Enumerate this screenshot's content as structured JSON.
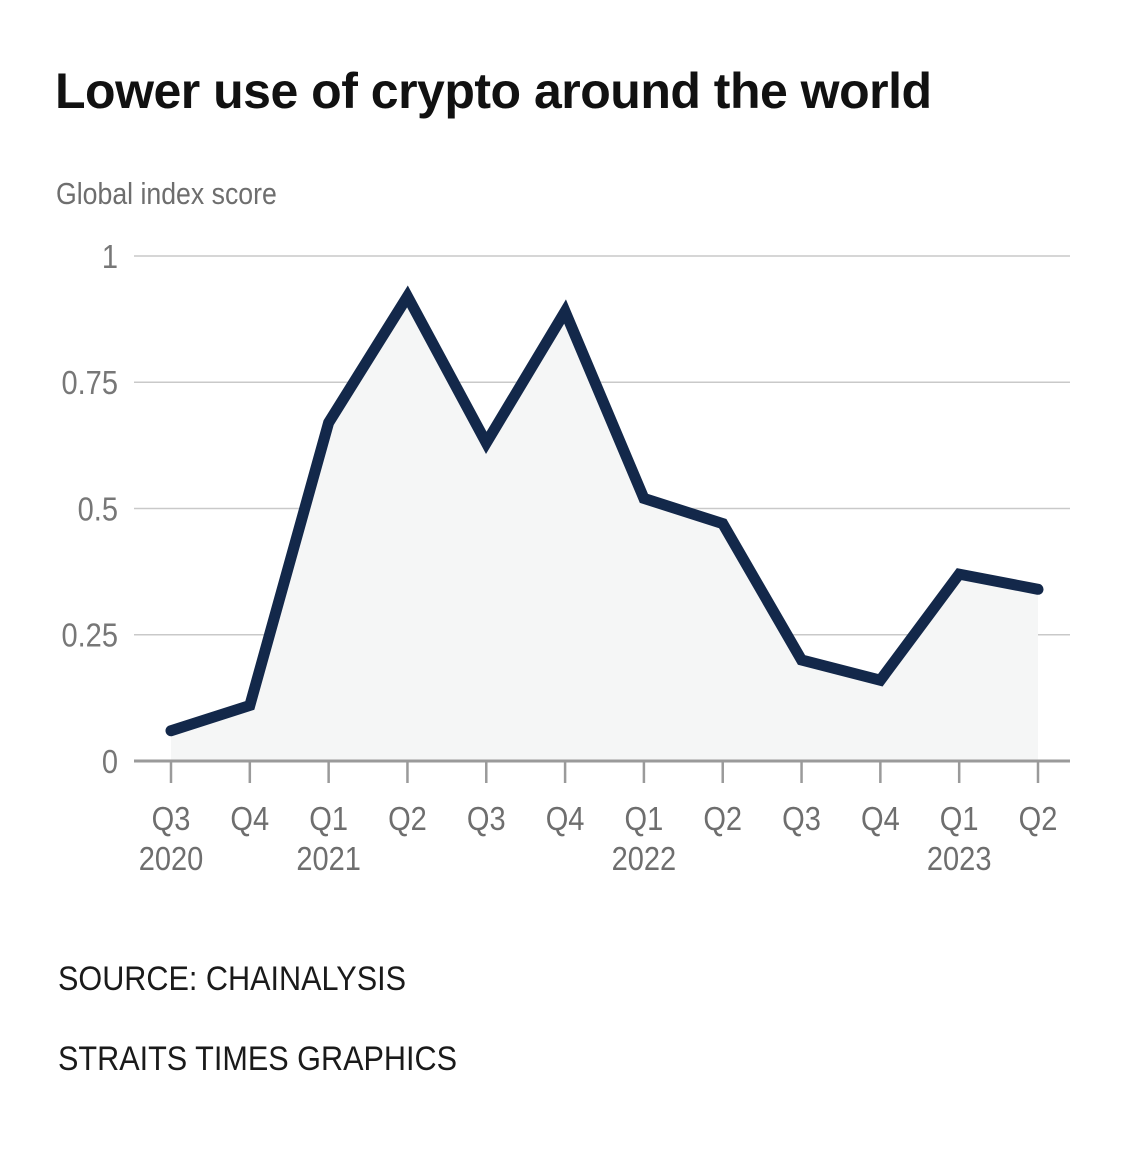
{
  "header": {
    "title": "Lower use of crypto around the world",
    "subtitle": "Global index score"
  },
  "footer": {
    "source": "SOURCE: CHAINALYSIS",
    "credit": "STRAITS TIMES GRAPHICS"
  },
  "chart_data": {
    "type": "line",
    "title": "Lower use of crypto around the world",
    "ylabel": "Global index score",
    "xlabel": "",
    "ylim": [
      0,
      1
    ],
    "yticks": [
      0,
      0.25,
      0.5,
      0.75,
      1
    ],
    "ytick_labels": [
      "0",
      "0.25",
      "0.5",
      "0.75",
      "1"
    ],
    "grid": true,
    "legend": "none",
    "categories": [
      {
        "quarter": "Q3",
        "year": "2020"
      },
      {
        "quarter": "Q4",
        "year": ""
      },
      {
        "quarter": "Q1",
        "year": "2021"
      },
      {
        "quarter": "Q2",
        "year": ""
      },
      {
        "quarter": "Q3",
        "year": ""
      },
      {
        "quarter": "Q4",
        "year": ""
      },
      {
        "quarter": "Q1",
        "year": "2022"
      },
      {
        "quarter": "Q2",
        "year": ""
      },
      {
        "quarter": "Q3",
        "year": ""
      },
      {
        "quarter": "Q4",
        "year": ""
      },
      {
        "quarter": "Q1",
        "year": "2023"
      },
      {
        "quarter": "Q2",
        "year": ""
      }
    ],
    "series": [
      {
        "name": "Global index score",
        "color": "#13284a",
        "fill": "#f5f6f6",
        "values": [
          0.06,
          0.11,
          0.67,
          0.92,
          0.63,
          0.89,
          0.52,
          0.47,
          0.2,
          0.16,
          0.37,
          0.34
        ]
      }
    ]
  }
}
